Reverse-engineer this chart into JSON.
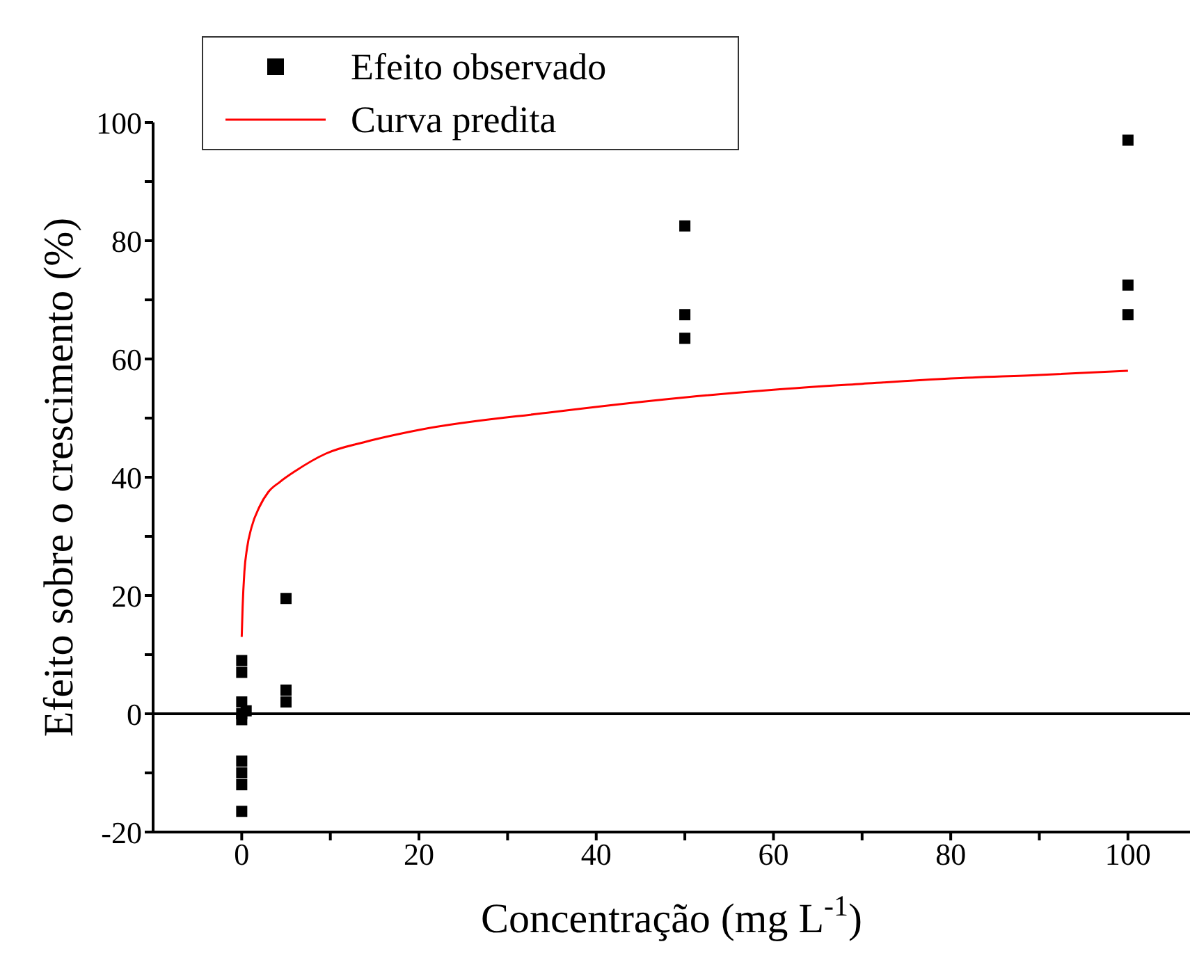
{
  "chart_data": {
    "type": "scatter",
    "xlabel": "Concentração (mg L$^{-1}$)",
    "ylabel": "Efeito sobre o crescimento (%)",
    "series": [
      {
        "name": "Efeito observado",
        "color": "#000000",
        "marker": "square",
        "x": [
          0,
          0,
          0,
          0,
          0,
          0.5,
          0,
          0,
          0,
          0,
          5,
          5,
          5,
          50,
          50,
          50,
          100,
          100,
          100
        ],
        "values": [
          9,
          7,
          2,
          0,
          -1,
          0.5,
          -8,
          -10,
          -12,
          -16.5,
          19.5,
          4,
          2,
          82.5,
          67.5,
          63.5,
          97,
          72.5,
          67.5
        ]
      },
      {
        "name": "Curva predita",
        "type": "line",
        "color": "#ff0000",
        "marker": "none",
        "line_style": "solid",
        "x": [
          0,
          0.1,
          0.3,
          0.6,
          1.1,
          2,
          3,
          4.3,
          6,
          9.5,
          14,
          20,
          35,
          50,
          60,
          70,
          80,
          90,
          100
        ],
        "values": [
          13,
          18,
          24,
          28,
          31.5,
          35,
          37.5,
          39.2,
          41,
          44,
          46,
          48,
          51,
          53.5,
          54.8,
          55.8,
          56.7,
          57.3,
          58
        ]
      }
    ],
    "xlim": [
      -10,
      107
    ],
    "xticks": [
      0,
      {
        "value": 10,
        "label": null
      },
      20,
      {
        "value": 30,
        "label": null
      },
      40,
      {
        "value": 50,
        "label": null
      },
      60,
      {
        "value": 70,
        "label": null
      },
      80,
      {
        "value": 90,
        "label": null
      },
      100
    ],
    "ylim": [
      -20,
      100
    ],
    "yticks": [
      -20,
      {
        "value": -10,
        "label": null
      },
      0,
      {
        "value": 10,
        "label": null
      },
      20,
      {
        "value": 30,
        "label": null
      },
      40,
      {
        "value": 50,
        "label": null
      },
      60,
      {
        "value": 70,
        "label": null
      },
      80,
      {
        "value": 90,
        "label": null
      },
      100
    ],
    "ref_lines": [
      {
        "axis": "y",
        "value": 0,
        "color": "#000000",
        "line_style": "solid"
      }
    ],
    "grid": false,
    "legend": "top left"
  }
}
